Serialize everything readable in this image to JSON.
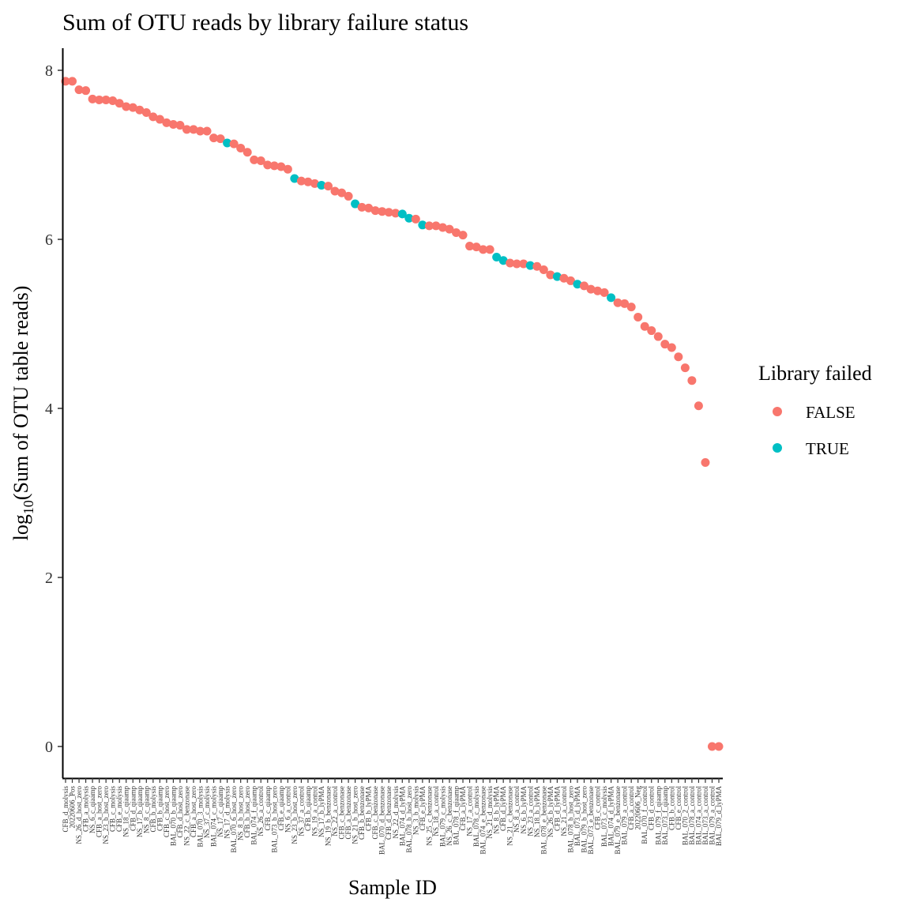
{
  "chart_data": {
    "type": "scatter",
    "title": "Sum of OTU reads by library failure status",
    "xlabel": "Sample ID",
    "ylabel_prefix": "log",
    "ylabel_sub": "10",
    "ylabel_suffix": "(Sum of OTU table reads)",
    "yticks": [
      0,
      2,
      4,
      6,
      8
    ],
    "ylim": [
      -0.38,
      8.25
    ],
    "grid": false,
    "legend": {
      "title": "Library failed",
      "position": "right",
      "entries": [
        {
          "label": "FALSE",
          "color": "#F8766D"
        },
        {
          "label": "TRUE",
          "color": "#00BFC4"
        }
      ]
    },
    "x_labels": [
      "CFB_d_molysis",
      "20220606_Pos",
      "NS_26_d_host_zero",
      "CFB_a_molysis",
      "NS_6_c_qiaamp",
      "CFB_a_host_zero",
      "NS_23_b_host_zero",
      "CFB_c_molysis",
      "CFB_e_molysis",
      "NS_18_c_qiaamp",
      "CFB_d_qiaamp",
      "NS_17_b_qiaamp",
      "NS_8_c_qiaamp",
      "CFB_b_molysis",
      "CFB_b_qiaamp",
      "CFB_c_host_zero",
      "BAL_070_b_qiaamp",
      "CFB_d_host_zero",
      "NS_22_c_benzonase",
      "CFB_a_host_zero",
      "BAL_070_3_molysis",
      "NS_37_c_molysis",
      "BAL_074_c_molysis",
      "NS_17_c_qiaamp",
      "NS_17_d_molysis",
      "BAL_070_6_host_zero",
      "NS_8_b_host_zero",
      "CFB_b_host_zero",
      "BAL_074_f_qiaamp",
      "NS_26_a_control",
      "CFB_c_qiaamp",
      "BAL_073_b_host_zero",
      "CFB_e_qiaamp",
      "NS_6_a_control",
      "NS_23_b_host_zero",
      "NS_37_a_control",
      "CFB_b_qiaamp",
      "NS_19_a_control",
      "NS_17_b_lyPMA",
      "NS_19_b_benzonase",
      "NS_22_a_control",
      "CFB_c_benzonase",
      "CFB_a_benzonase",
      "NS_21_b_host_zero",
      "CFB_b_benzonase",
      "CFB_b_lyPMA",
      "CFB_c_benzonase",
      "BAL_070_d_benzonase",
      "CFB_d_benzonase",
      "NS_22_d_molysis",
      "BAL_074_d_lyPMA",
      "BAL_078_b_host_zero",
      "NS_3_b_molysis",
      "CFB_e_lyPMA",
      "NS_25_c_benzonase",
      "NS_18_a_control",
      "BAL_079_c_molysis",
      "NS_26_c_benzonase",
      "BAL_078_f_qiaamp",
      "CFB_a_lyPMA",
      "NS_17_a_control",
      "BAL_078_c_molysis",
      "BAL_074_e_benzonase",
      "NS_21_d_molysis",
      "NS_8_b_lyPMA",
      "CFB_d_lyPMA",
      "NS_21_c_benzonase",
      "NS_8_a_control",
      "NS_6_b_lyPMA",
      "NS_23_a_control",
      "NS_18_b_lyPMA",
      "BAL_078_e_benzonase",
      "NS_26_b_lyPMA",
      "CFB_d_lyPMA",
      "NS_21_a_control",
      "BAL_078_b_host_zero",
      "BAL_073_d_lyPMA",
      "BAL_079_b_host_zero",
      "BAL_073_e_benzonase",
      "CFB_c_control",
      "BAL_073_c_molysis",
      "BAL_074_d_lyPMA",
      "BAL_079_e_benzonase",
      "BAL_079_a_control",
      "CFB_a_control",
      "20220606_Neg",
      "BAL_070_f_control",
      "CFB_d_control",
      "BAL_079_f_qiaamp",
      "BAL_073_f_qiaamp",
      "CFB_b_control",
      "CFB_e_control",
      "BAL_070_2_control",
      "BAL_078_a_control",
      "BAL_074_a_control",
      "BAL_073_a_control",
      "BAL_079_a_control",
      "BAL_079_d_lyPMA"
    ],
    "points": [
      [
        1,
        7.87,
        false
      ],
      [
        2,
        7.87,
        false
      ],
      [
        3,
        7.77,
        false
      ],
      [
        4,
        7.76,
        false
      ],
      [
        5,
        7.66,
        false
      ],
      [
        6,
        7.65,
        false
      ],
      [
        7,
        7.65,
        false
      ],
      [
        8,
        7.64,
        false
      ],
      [
        9,
        7.61,
        false
      ],
      [
        10,
        7.57,
        false
      ],
      [
        11,
        7.56,
        false
      ],
      [
        12,
        7.53,
        false
      ],
      [
        13,
        7.5,
        false
      ],
      [
        14,
        7.45,
        false
      ],
      [
        15,
        7.42,
        false
      ],
      [
        16,
        7.38,
        false
      ],
      [
        17,
        7.36,
        false
      ],
      [
        18,
        7.35,
        false
      ],
      [
        19,
        7.3,
        false
      ],
      [
        20,
        7.3,
        false
      ],
      [
        21,
        7.28,
        false
      ],
      [
        22,
        7.28,
        false
      ],
      [
        23,
        7.2,
        false
      ],
      [
        24,
        7.19,
        false
      ],
      [
        25,
        7.14,
        true
      ],
      [
        26,
        7.13,
        false
      ],
      [
        27,
        7.08,
        false
      ],
      [
        28,
        7.03,
        false
      ],
      [
        29,
        6.94,
        false
      ],
      [
        30,
        6.93,
        false
      ],
      [
        31,
        6.88,
        false
      ],
      [
        32,
        6.87,
        false
      ],
      [
        33,
        6.86,
        false
      ],
      [
        34,
        6.83,
        false
      ],
      [
        35,
        6.72,
        true
      ],
      [
        36,
        6.69,
        false
      ],
      [
        37,
        6.68,
        false
      ],
      [
        38,
        6.66,
        false
      ],
      [
        39,
        6.64,
        true
      ],
      [
        40,
        6.63,
        false
      ],
      [
        41,
        6.57,
        false
      ],
      [
        42,
        6.55,
        false
      ],
      [
        43,
        6.51,
        false
      ],
      [
        44,
        6.42,
        true
      ],
      [
        45,
        6.38,
        false
      ],
      [
        46,
        6.37,
        false
      ],
      [
        47,
        6.34,
        false
      ],
      [
        48,
        6.33,
        false
      ],
      [
        49,
        6.32,
        false
      ],
      [
        50,
        6.31,
        false
      ],
      [
        51,
        6.3,
        true
      ],
      [
        52,
        6.25,
        true
      ],
      [
        53,
        6.24,
        false
      ],
      [
        54,
        6.17,
        true
      ],
      [
        55,
        6.16,
        false
      ],
      [
        56,
        6.16,
        false
      ],
      [
        57,
        6.14,
        false
      ],
      [
        58,
        6.12,
        false
      ],
      [
        59,
        6.08,
        false
      ],
      [
        60,
        6.05,
        false
      ],
      [
        61,
        5.92,
        false
      ],
      [
        62,
        5.91,
        false
      ],
      [
        63,
        5.88,
        false
      ],
      [
        64,
        5.88,
        false
      ],
      [
        65,
        5.79,
        true
      ],
      [
        66,
        5.75,
        true
      ],
      [
        67,
        5.72,
        false
      ],
      [
        68,
        5.71,
        false
      ],
      [
        69,
        5.71,
        false
      ],
      [
        70,
        5.69,
        true
      ],
      [
        71,
        5.68,
        false
      ],
      [
        72,
        5.64,
        false
      ],
      [
        73,
        5.58,
        false
      ],
      [
        74,
        5.56,
        true
      ],
      [
        75,
        5.54,
        false
      ],
      [
        76,
        5.51,
        false
      ],
      [
        77,
        5.47,
        true
      ],
      [
        78,
        5.45,
        false
      ],
      [
        79,
        5.41,
        false
      ],
      [
        80,
        5.39,
        false
      ],
      [
        81,
        5.37,
        false
      ],
      [
        82,
        5.31,
        true
      ],
      [
        83,
        5.25,
        false
      ],
      [
        84,
        5.24,
        false
      ],
      [
        85,
        5.2,
        false
      ],
      [
        86,
        5.08,
        false
      ],
      [
        87,
        4.97,
        false
      ],
      [
        88,
        4.92,
        false
      ],
      [
        89,
        4.85,
        false
      ],
      [
        90,
        4.76,
        false
      ],
      [
        91,
        4.72,
        false
      ],
      [
        92,
        4.61,
        false
      ],
      [
        93,
        4.48,
        false
      ],
      [
        94,
        4.33,
        false
      ],
      [
        95,
        4.03,
        false
      ],
      [
        96,
        3.36,
        false
      ],
      [
        97,
        0.0,
        false
      ],
      [
        98,
        0.0,
        false
      ]
    ]
  }
}
